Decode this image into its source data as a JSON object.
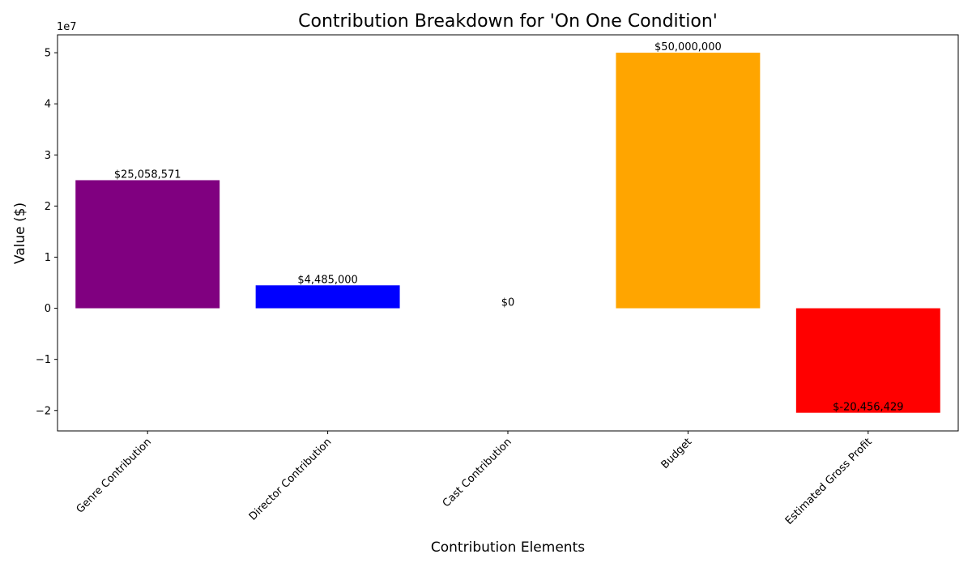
{
  "chart_data": {
    "type": "bar",
    "title": "Contribution Breakdown for 'On One Condition'",
    "xlabel": "Contribution Elements",
    "ylabel": "Value ($)",
    "y_offset_label": "1e7",
    "categories": [
      "Genre Contribution",
      "Director Contribution",
      "Cast Contribution",
      "Budget",
      "Estimated Gross Profit"
    ],
    "values": [
      25058571,
      4485000,
      0,
      50000000,
      -20456429
    ],
    "value_labels": [
      "$25,058,571",
      "$4,485,000",
      "$0",
      "$50,000,000",
      "$-20,456,429"
    ],
    "colors": [
      "#800080",
      "#0000ff",
      "#008000",
      "#ffa500",
      "#ff0000"
    ],
    "ylim": [
      -24000000,
      53500000
    ],
    "yticks": [
      -2,
      -1,
      0,
      1,
      2,
      3,
      4,
      5
    ],
    "ytick_labels": [
      "−2",
      "−1",
      "0",
      "1",
      "2",
      "3",
      "4",
      "5"
    ],
    "ytick_scale": 10000000,
    "grid": false,
    "legend": "none"
  }
}
